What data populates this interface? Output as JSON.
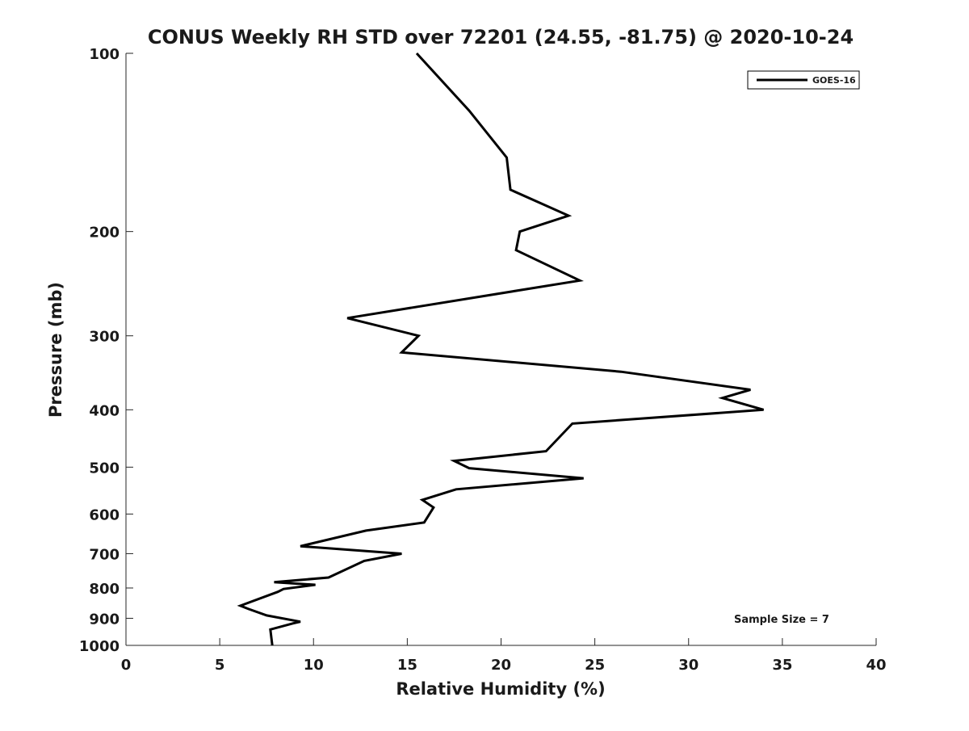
{
  "chart_data": {
    "type": "line",
    "title": "CONUS Weekly RH STD over 72201 (24.55, -81.75) @ 2020-10-24",
    "xlabel": "Relative Humidity (%)",
    "ylabel": "Pressure (mb)",
    "xlim": [
      0,
      40
    ],
    "ylim": [
      100,
      1000
    ],
    "y_scale": "log",
    "y_reversed": true,
    "x_ticks": [
      "0",
      "5",
      "10",
      "15",
      "20",
      "25",
      "30",
      "35",
      "40"
    ],
    "y_ticks": [
      "100",
      "200",
      "300",
      "400",
      "500",
      "600",
      "700",
      "800",
      "900",
      "1000"
    ],
    "grid": false,
    "legend_position": "top-right",
    "series": [
      {
        "name": "GOES-16",
        "color": "#000000",
        "points": [
          [
            15.5,
            100
          ],
          [
            18.3,
            125
          ],
          [
            20.3,
            150
          ],
          [
            20.5,
            170
          ],
          [
            23.6,
            188
          ],
          [
            21.0,
            200
          ],
          [
            20.8,
            215
          ],
          [
            24.2,
            242
          ],
          [
            11.8,
            280
          ],
          [
            15.6,
            300
          ],
          [
            14.7,
            320
          ],
          [
            26.4,
            345
          ],
          [
            33.3,
            370
          ],
          [
            31.8,
            382
          ],
          [
            34.0,
            400
          ],
          [
            23.8,
            422
          ],
          [
            22.4,
            470
          ],
          [
            17.5,
            488
          ],
          [
            18.3,
            502
          ],
          [
            24.4,
            522
          ],
          [
            17.6,
            545
          ],
          [
            15.8,
            568
          ],
          [
            16.4,
            585
          ],
          [
            15.9,
            620
          ],
          [
            12.8,
            640
          ],
          [
            9.3,
            680
          ],
          [
            14.7,
            700
          ],
          [
            12.7,
            720
          ],
          [
            10.8,
            768
          ],
          [
            7.9,
            782
          ],
          [
            10.1,
            790
          ],
          [
            8.4,
            803
          ],
          [
            8.1,
            812
          ],
          [
            6.1,
            857
          ],
          [
            6.5,
            867
          ],
          [
            7.5,
            890
          ],
          [
            9.3,
            912
          ],
          [
            8.9,
            918
          ],
          [
            7.7,
            940
          ],
          [
            7.8,
            1000
          ]
        ]
      }
    ],
    "annotation": "Sample Size = 7"
  }
}
